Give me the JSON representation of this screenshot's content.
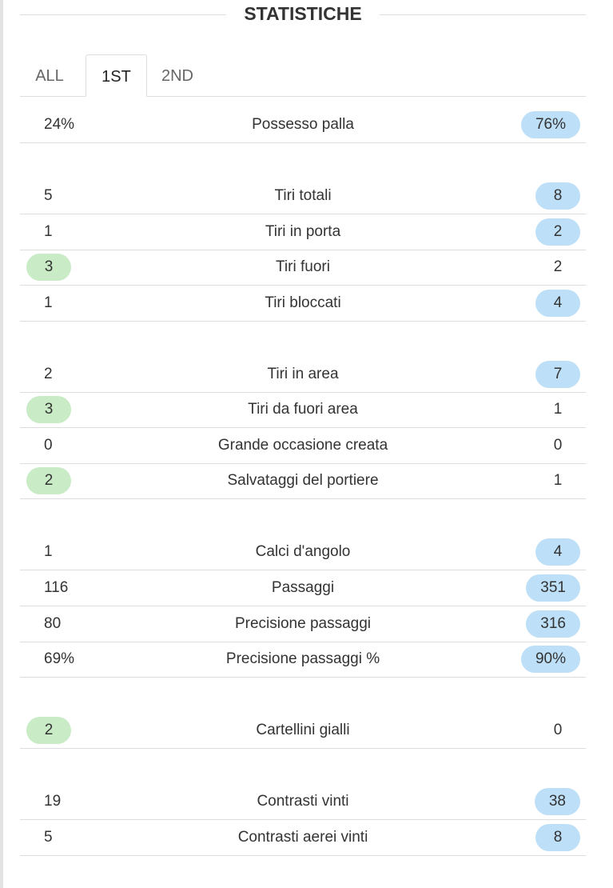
{
  "header": {
    "title": "STATISTICHE"
  },
  "tabs": [
    {
      "label": "ALL"
    },
    {
      "label": "1ST",
      "active": true
    },
    {
      "label": "2ND"
    }
  ],
  "groups": [
    {
      "rows": [
        {
          "home": "24%",
          "label": "Possesso palla",
          "away": "76%",
          "highlight": "away"
        }
      ]
    },
    {
      "rows": [
        {
          "home": "5",
          "label": "Tiri totali",
          "away": "8",
          "highlight": "away"
        },
        {
          "home": "1",
          "label": "Tiri in porta",
          "away": "2",
          "highlight": "away"
        },
        {
          "home": "3",
          "label": "Tiri fuori",
          "away": "2",
          "highlight": "home"
        },
        {
          "home": "1",
          "label": "Tiri bloccati",
          "away": "4",
          "highlight": "away"
        }
      ]
    },
    {
      "rows": [
        {
          "home": "2",
          "label": "Tiri in area",
          "away": "7",
          "highlight": "away"
        },
        {
          "home": "3",
          "label": "Tiri da fuori area",
          "away": "1",
          "highlight": "home"
        },
        {
          "home": "0",
          "label": "Grande occasione creata",
          "away": "0"
        },
        {
          "home": "2",
          "label": "Salvataggi del portiere",
          "away": "1",
          "highlight": "home"
        }
      ]
    },
    {
      "rows": [
        {
          "home": "1",
          "label": "Calci d'angolo",
          "away": "4",
          "highlight": "away"
        },
        {
          "home": "116",
          "label": "Passaggi",
          "away": "351",
          "highlight": "away"
        },
        {
          "home": "80",
          "label": "Precisione passaggi",
          "away": "316",
          "highlight": "away"
        },
        {
          "home": "69%",
          "label": "Precisione passaggi %",
          "away": "90%",
          "highlight": "away"
        }
      ]
    },
    {
      "rows": [
        {
          "home": "2",
          "label": "Cartellini gialli",
          "away": "0",
          "highlight": "home"
        }
      ]
    },
    {
      "rows": [
        {
          "home": "19",
          "label": "Contrasti vinti",
          "away": "38",
          "highlight": "away"
        },
        {
          "home": "5",
          "label": "Contrasti aerei vinti",
          "away": "8",
          "highlight": "away"
        }
      ]
    }
  ]
}
